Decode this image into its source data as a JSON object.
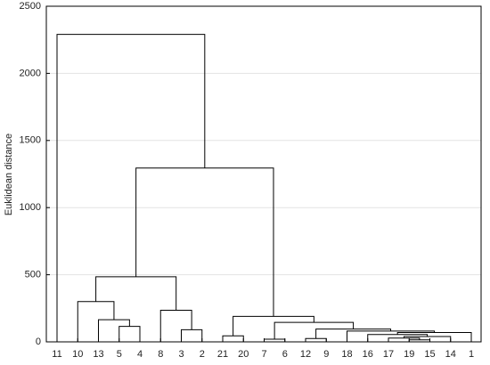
{
  "chart_data": {
    "type": "dendrogram",
    "ylabel": "Euklidean distance",
    "leaves": [
      "11",
      "10",
      "13",
      "5",
      "4",
      "8",
      "3",
      "2",
      "21",
      "20",
      "7",
      "6",
      "12",
      "9",
      "18",
      "16",
      "17",
      "19",
      "15",
      "14",
      "1"
    ],
    "merges": [
      [
        3,
        4
      ],
      [
        2,
        21
      ],
      [
        1,
        22
      ],
      [
        6,
        7
      ],
      [
        5,
        24
      ],
      [
        23,
        25
      ],
      [
        8,
        9
      ],
      [
        10,
        11
      ],
      [
        12,
        13
      ],
      [
        17,
        18
      ],
      [
        16,
        30
      ],
      [
        31,
        19
      ],
      [
        15,
        32
      ],
      [
        33,
        20
      ],
      [
        14,
        34
      ],
      [
        29,
        35
      ],
      [
        28,
        36
      ],
      [
        27,
        37
      ],
      [
        26,
        38
      ],
      [
        0,
        39
      ]
    ],
    "heights": [
      115,
      165,
      300,
      90,
      235,
      485,
      45,
      20,
      25,
      15,
      28,
      40,
      55,
      70,
      80,
      95,
      145,
      190,
      1295,
      2290
    ],
    "ylim": [
      0,
      2500
    ],
    "yticks": [
      0,
      500,
      1000,
      1500,
      2000,
      2500
    ],
    "grid": true,
    "color": "#000000"
  }
}
